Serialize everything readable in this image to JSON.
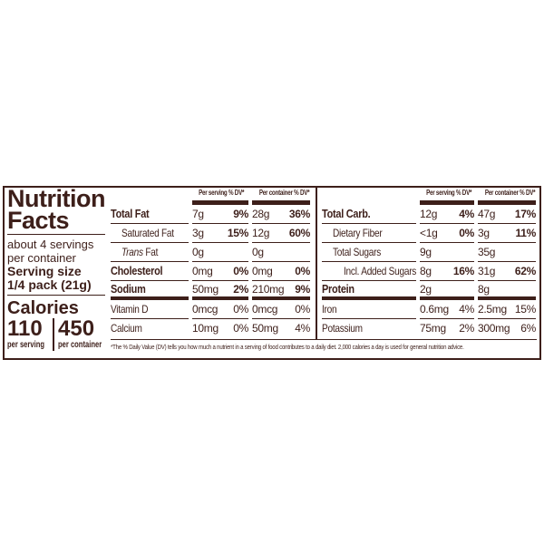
{
  "label": {
    "title_line1": "Nutrition",
    "title_line2": "Facts",
    "servings_line1": "about 4 servings",
    "servings_line2": "per container",
    "serving_size_label": "Serving size",
    "serving_size_value": "1/4 pack (21g)",
    "calories_label": "Calories",
    "calories_per_serving": "110",
    "per_serving_label": "per serving",
    "calories_per_container": "450",
    "per_container_label": "per container"
  },
  "left_table": {
    "header_serving": "Per serving % DV*",
    "header_container": "Per container % DV*",
    "rows": [
      {
        "name": "Total Fat",
        "bold": true,
        "indent": 0,
        "ps_amt": "7g",
        "ps_dv": "9%",
        "pc_amt": "28g",
        "pc_dv": "36%"
      },
      {
        "name": "Saturated Fat",
        "bold": false,
        "indent": 1,
        "ps_amt": "3g",
        "ps_dv": "15%",
        "pc_amt": "12g",
        "pc_dv": "60%",
        "dv_bold": true
      },
      {
        "italic": "Trans",
        "name": " Fat",
        "bold": false,
        "indent": 1,
        "ps_amt": "0g",
        "ps_dv": "",
        "pc_amt": "0g",
        "pc_dv": ""
      },
      {
        "name": "Cholesterol",
        "bold": true,
        "indent": 0,
        "ps_amt": "0mg",
        "ps_dv": "0%",
        "pc_amt": "0mg",
        "pc_dv": "0%"
      },
      {
        "name": "Sodium",
        "bold": true,
        "indent": 0,
        "ps_amt": "50mg",
        "ps_dv": "2%",
        "pc_amt": "210mg",
        "pc_dv": "9%",
        "thick": true
      },
      {
        "name": "Vitamin D",
        "bold": false,
        "indent": 0,
        "ps_amt": "0mcg",
        "ps_dv": "0%",
        "pc_amt": "0mcg",
        "pc_dv": "0%",
        "vitamin": true
      },
      {
        "name": "Calcium",
        "bold": false,
        "indent": 0,
        "ps_amt": "10mg",
        "ps_dv": "0%",
        "pc_amt": "50mg",
        "pc_dv": "4%",
        "vitamin": true,
        "last": true
      }
    ]
  },
  "right_table": {
    "header_serving": "Per serving % DV*",
    "header_container": "Per container % DV*",
    "rows": [
      {
        "name": "Total Carb.",
        "bold": true,
        "indent": 0,
        "ps_amt": "12g",
        "ps_dv": "4%",
        "pc_amt": "47g",
        "pc_dv": "17%"
      },
      {
        "name": "Dietary Fiber",
        "bold": false,
        "indent": 1,
        "ps_amt": "<1g",
        "ps_dv": "0%",
        "pc_amt": "3g",
        "pc_dv": "11%",
        "dv_bold": true
      },
      {
        "name": "Total Sugars",
        "bold": false,
        "indent": 1,
        "ps_amt": "9g",
        "ps_dv": "",
        "pc_amt": "35g",
        "pc_dv": ""
      },
      {
        "name": "Incl. Added Sugars",
        "bold": false,
        "indent": 2,
        "ps_amt": "8g",
        "ps_dv": "16%",
        "pc_amt": "31g",
        "pc_dv": "62%",
        "dv_bold": true
      },
      {
        "name": "Protein",
        "bold": true,
        "indent": 0,
        "ps_amt": "2g",
        "ps_dv": "",
        "pc_amt": "8g",
        "pc_dv": "",
        "thick": true
      },
      {
        "name": "Iron",
        "bold": false,
        "indent": 0,
        "ps_amt": "0.6mg",
        "ps_dv": "4%",
        "pc_amt": "2.5mg",
        "pc_dv": "15%",
        "vitamin": true
      },
      {
        "name": "Potassium",
        "bold": false,
        "indent": 0,
        "ps_amt": "75mg",
        "ps_dv": "2%",
        "pc_amt": "300mg",
        "pc_dv": "6%",
        "vitamin": true,
        "last": true
      }
    ]
  },
  "footnote": "*The % Daily Value (DV) tells you how much a nutrient in a serving of food contributes to a daily diet. 2,000 calories a day is used for general nutrition advice.",
  "colors": {
    "ink": "#3d1f1a",
    "background": "#ffffff"
  }
}
